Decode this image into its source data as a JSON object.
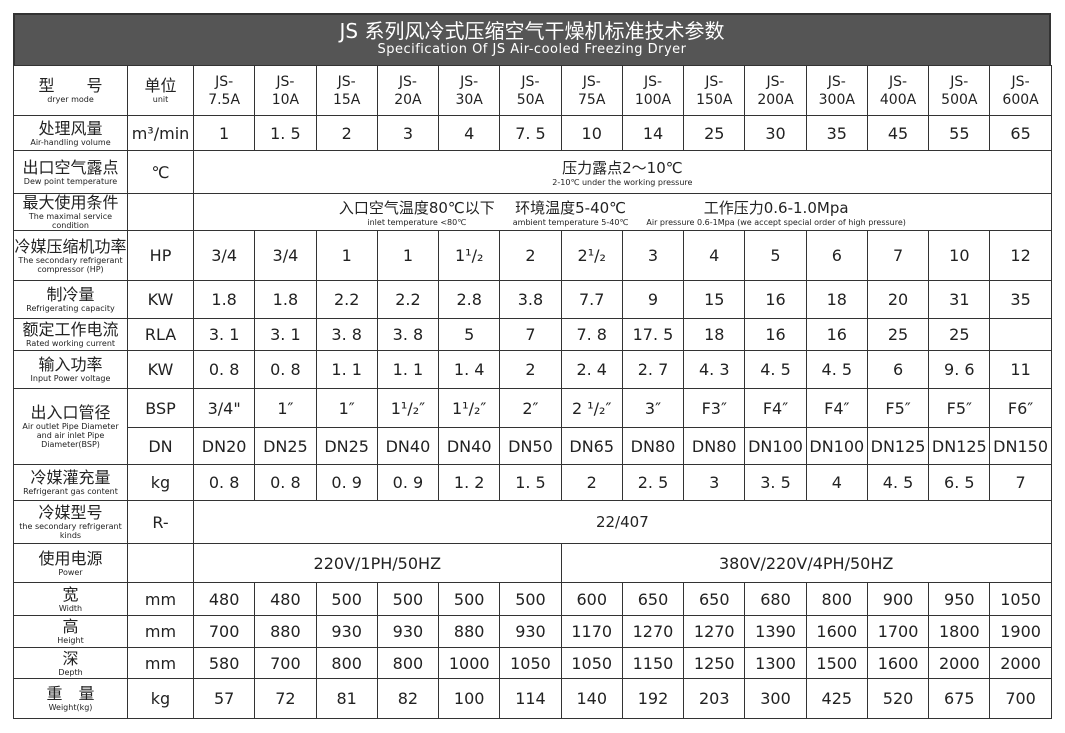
{
  "title": {
    "cn": "JS 系列风冷式压缩空气干燥机标准技术参数",
    "en": "Specification Of JS  Air-cooled Freezing Dryer"
  },
  "header": {
    "label_cn": "型　　号",
    "label_en": "dryer mode",
    "unit_cn": "单位",
    "unit_en": "unit",
    "models": [
      [
        "JS-",
        "7.5A"
      ],
      [
        "JS-",
        "10A"
      ],
      [
        "JS-",
        "15A"
      ],
      [
        "JS-",
        "20A"
      ],
      [
        "JS-",
        "30A"
      ],
      [
        "JS-",
        "50A"
      ],
      [
        "JS-",
        "75A"
      ],
      [
        "JS-",
        "100A"
      ],
      [
        "JS-",
        "150A"
      ],
      [
        "JS-",
        "200A"
      ],
      [
        "JS-",
        "300A"
      ],
      [
        "JS-",
        "400A"
      ],
      [
        "JS-",
        "500A"
      ],
      [
        "JS-",
        "600A"
      ]
    ]
  },
  "rows": [
    {
      "cn": "处理风量",
      "en": "Air-handling volume",
      "unit": "m³/min",
      "values": [
        "1",
        "1. 5",
        "2",
        "3",
        "4",
        "7. 5",
        "10",
        "14",
        "25",
        "30",
        "35",
        "45",
        "55",
        "65"
      ]
    },
    {
      "cn": "出口空气露点",
      "en": "Dew point temperature",
      "unit": "℃",
      "span": [
        {
          "cn": "压力露点2～10℃",
          "en": "2-10℃ under the working pressure"
        }
      ]
    },
    {
      "cn": "最大使用条件",
      "en": "The maximal service condition",
      "unit": "",
      "span": [
        {
          "cn": "入口空气温度80℃以下",
          "en": "inlet temperature <80℃"
        },
        {
          "cn": "环境温度5-40℃",
          "en": "ambient temperature 5-40℃"
        },
        {
          "cn": "工作压力0.6-1.0Mpa",
          "en": "Air pressure 0.6-1Mpa (we accept special order of high pressure)"
        }
      ]
    },
    {
      "cn": "冷媒压缩机功率",
      "en": "The secondary refrigerant compressor (HP)",
      "unit": "HP",
      "values": [
        "3/4",
        "3/4",
        "1",
        "1",
        "1¹/₂",
        "2",
        "2¹/₂",
        "3",
        "4",
        "5",
        "6",
        "7",
        "10",
        "12"
      ]
    },
    {
      "cn": "制冷量",
      "en": "Refrigerating capacity",
      "unit": "KW",
      "values": [
        "1.8",
        "1.8",
        "2.2",
        "2.2",
        "2.8",
        "3.8",
        "7.7",
        "9",
        "15",
        "16",
        "18",
        "20",
        "31",
        "35"
      ]
    },
    {
      "cn": "额定工作电流",
      "en": "Rated working current",
      "unit": "RLA",
      "values": [
        "3. 1",
        "3. 1",
        "3. 8",
        "3. 8",
        "5",
        "7",
        "7. 8",
        "17. 5",
        "18",
        "16",
        "16",
        "25",
        "25"
      ],
      "shift": true
    },
    {
      "cn": "输入功率",
      "en": "Input Power voltage",
      "unit": "KW",
      "values": [
        "0. 8",
        "0. 8",
        "1. 1",
        "1. 1",
        "1. 4",
        "2",
        "2. 4",
        "2. 7",
        "4. 3",
        "4. 5",
        "4. 5",
        "6",
        "9. 6",
        "11"
      ]
    },
    {
      "cn": "出入口管径",
      "en": "Air outlet Pipe Diameter and air inlet Pipe Diameter(BSP)",
      "unit": "BSP",
      "values": [
        "3/4\"",
        "1″",
        "1″",
        "1¹/₂″",
        "1¹/₂″",
        "2″",
        "2 ¹/₂″",
        "3″",
        "F3″",
        "F4″",
        "F4″",
        "F5″",
        "F5″",
        "F6″"
      ],
      "rowspan": 2
    },
    {
      "unit": "DN",
      "values": [
        "DN20",
        "DN25",
        "DN25",
        "DN40",
        "DN40",
        "DN50",
        "DN65",
        "DN80",
        "DN80",
        "DN100",
        "DN100",
        "DN125",
        "DN125",
        "DN150"
      ],
      "cont": true
    },
    {
      "cn": "冷媒灌充量",
      "en": "Refrigerant gas content",
      "unit": "kg",
      "values": [
        "0. 8",
        "0. 8",
        "0. 9",
        "0. 9",
        "1. 2",
        "1. 5",
        "2",
        "2. 5",
        "3",
        "3. 5",
        "4",
        "4. 5",
        "6. 5",
        "7"
      ]
    },
    {
      "cn": "冷媒型号",
      "en": "the secondary refrigerant kinds",
      "unit": "R-",
      "span": [
        {
          "cn": "22/407",
          "en": ""
        }
      ]
    },
    {
      "cn": "使用电源",
      "en": "Power",
      "unit": "",
      "split": [
        "220V/1PH/50HZ",
        "380V/220V/4PH/50HZ"
      ]
    },
    {
      "cn": "宽",
      "en": "Width",
      "unit": "mm",
      "values": [
        "480",
        "480",
        "500",
        "500",
        "500",
        "500",
        "600",
        "650",
        "650",
        "680",
        "800",
        "900",
        "950",
        "1050"
      ]
    },
    {
      "cn": "高",
      "en": "Height",
      "unit": "mm",
      "values": [
        "700",
        "880",
        "930",
        "930",
        "880",
        "930",
        "1170",
        "1270",
        "1270",
        "1390",
        "1600",
        "1700",
        "1800",
        "1900"
      ]
    },
    {
      "cn": "深",
      "en": "Depth",
      "unit": "mm",
      "values": [
        "580",
        "700",
        "800",
        "800",
        "1000",
        "1050",
        "1050",
        "1150",
        "1250",
        "1300",
        "1500",
        "1600",
        "2000",
        "2000"
      ]
    },
    {
      "cn": "重　量",
      "en": "Weight(kg)",
      "unit": "kg",
      "values": [
        "57",
        "72",
        "81",
        "82",
        "100",
        "114",
        "140",
        "192",
        "203",
        "300",
        "425",
        "520",
        "675",
        "700"
      ]
    }
  ],
  "colors": {
    "title_bg": "#555555",
    "border": "#333333"
  }
}
